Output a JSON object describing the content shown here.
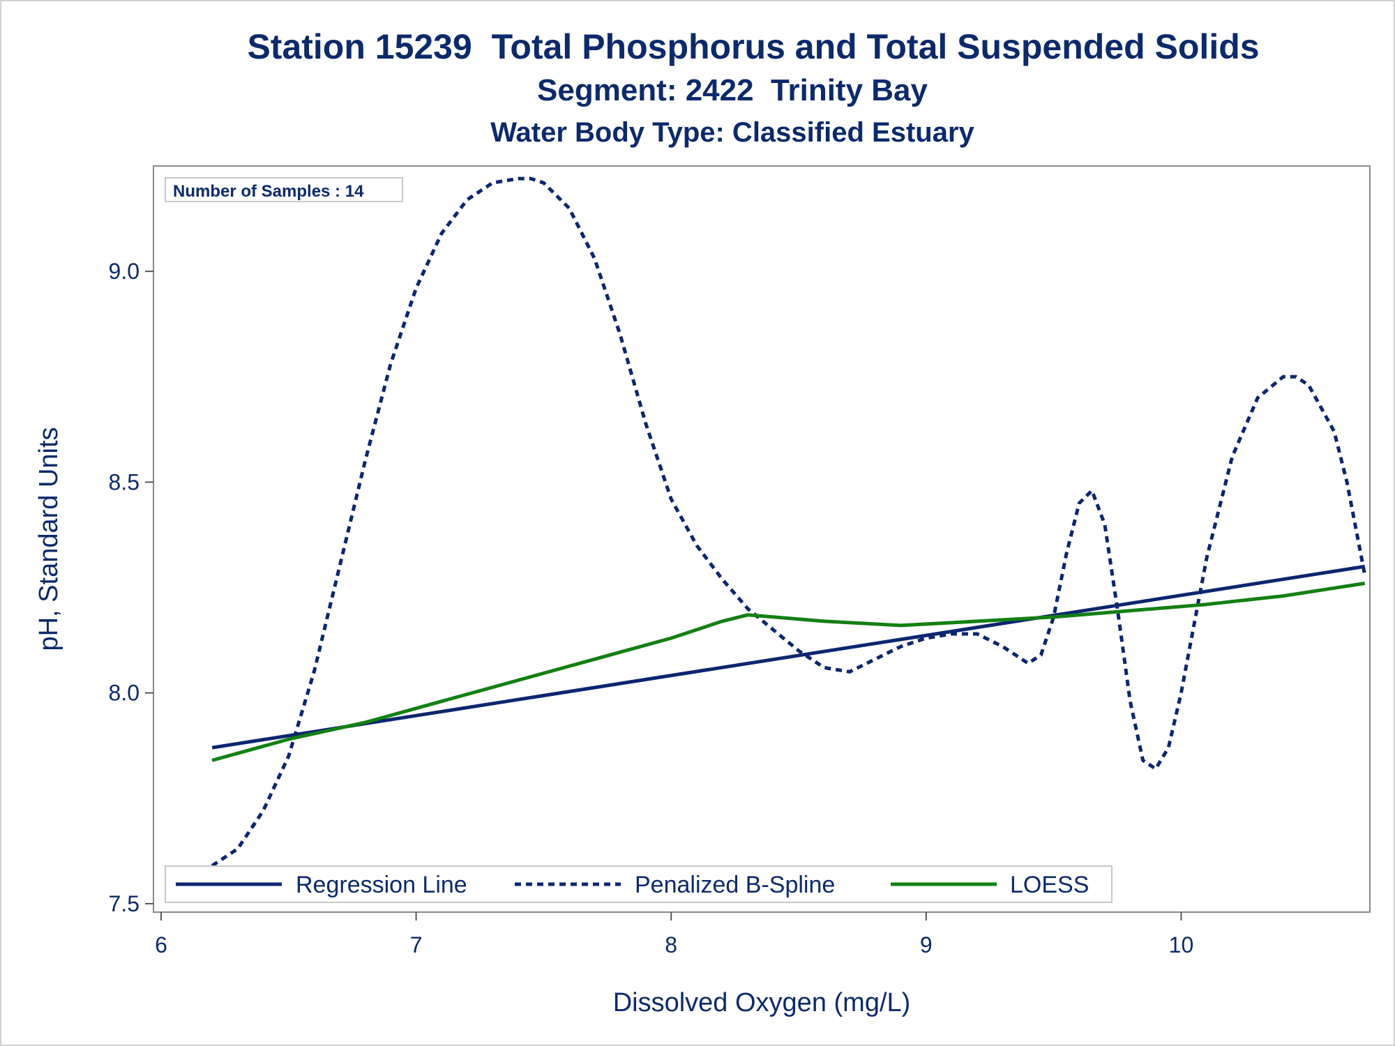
{
  "titles": {
    "line1": "Station 15239  Total Phosphorus and Total Suspended Solids",
    "line2": "Segment: 2422  Trinity Bay",
    "line3": "Water Body Type: Classified Estuary"
  },
  "inset_note": "Number of Samples : 14",
  "colors": {
    "regression": "#0c2670",
    "spline": "#0c2670",
    "loess": "#138013",
    "text": "#0c2a6b",
    "axis": "#555555"
  },
  "chart_data": {
    "type": "line",
    "xlabel": "Dissolved Oxygen (mg/L)",
    "ylabel": "pH, Standard Units",
    "xlim": [
      5.97,
      10.74
    ],
    "ylim": [
      7.48,
      9.25
    ],
    "x_ticks": [
      6,
      7,
      8,
      9,
      10
    ],
    "x_tick_labels": [
      "6",
      "7",
      "8",
      "9",
      "10"
    ],
    "y_ticks": [
      7.5,
      8.0,
      8.5,
      9.0
    ],
    "y_tick_labels": [
      "7.5",
      "8.0",
      "8.5",
      "9.0"
    ],
    "legend_position": "bottom-left",
    "series": [
      {
        "name": "Regression Line",
        "style": "solid",
        "x": [
          6.2,
          10.72
        ],
        "y": [
          7.87,
          8.3
        ]
      },
      {
        "name": "Penalized B-Spline",
        "style": "dashed",
        "x": [
          6.2,
          6.3,
          6.4,
          6.5,
          6.6,
          6.7,
          6.8,
          6.9,
          7.0,
          7.1,
          7.2,
          7.3,
          7.4,
          7.45,
          7.5,
          7.6,
          7.7,
          7.8,
          7.9,
          8.0,
          8.1,
          8.2,
          8.3,
          8.4,
          8.5,
          8.6,
          8.7,
          8.8,
          8.9,
          9.0,
          9.1,
          9.2,
          9.3,
          9.35,
          9.4,
          9.45,
          9.5,
          9.55,
          9.6,
          9.65,
          9.7,
          9.75,
          9.8,
          9.85,
          9.9,
          9.95,
          10.0,
          10.05,
          10.1,
          10.2,
          10.3,
          10.4,
          10.45,
          10.5,
          10.6,
          10.65,
          10.72
        ],
        "y": [
          7.59,
          7.63,
          7.72,
          7.85,
          8.05,
          8.3,
          8.55,
          8.78,
          8.96,
          9.09,
          9.17,
          9.21,
          9.22,
          9.22,
          9.21,
          9.15,
          9.03,
          8.85,
          8.64,
          8.46,
          8.35,
          8.27,
          8.2,
          8.15,
          8.1,
          8.06,
          8.05,
          8.08,
          8.11,
          8.13,
          8.14,
          8.14,
          8.11,
          8.09,
          8.07,
          8.09,
          8.18,
          8.33,
          8.45,
          8.48,
          8.4,
          8.2,
          7.98,
          7.84,
          7.82,
          7.87,
          8.0,
          8.16,
          8.32,
          8.56,
          8.7,
          8.75,
          8.75,
          8.73,
          8.62,
          8.5,
          8.28
        ]
      },
      {
        "name": "LOESS",
        "style": "solid",
        "x": [
          6.2,
          6.5,
          6.8,
          7.1,
          7.4,
          7.7,
          8.0,
          8.2,
          8.3,
          8.4,
          8.6,
          8.9,
          9.2,
          9.5,
          9.8,
          10.1,
          10.4,
          10.72
        ],
        "y": [
          7.84,
          7.89,
          7.93,
          7.98,
          8.03,
          8.08,
          8.13,
          8.17,
          8.185,
          8.18,
          8.17,
          8.16,
          8.17,
          8.18,
          8.195,
          8.21,
          8.23,
          8.26
        ]
      }
    ]
  }
}
